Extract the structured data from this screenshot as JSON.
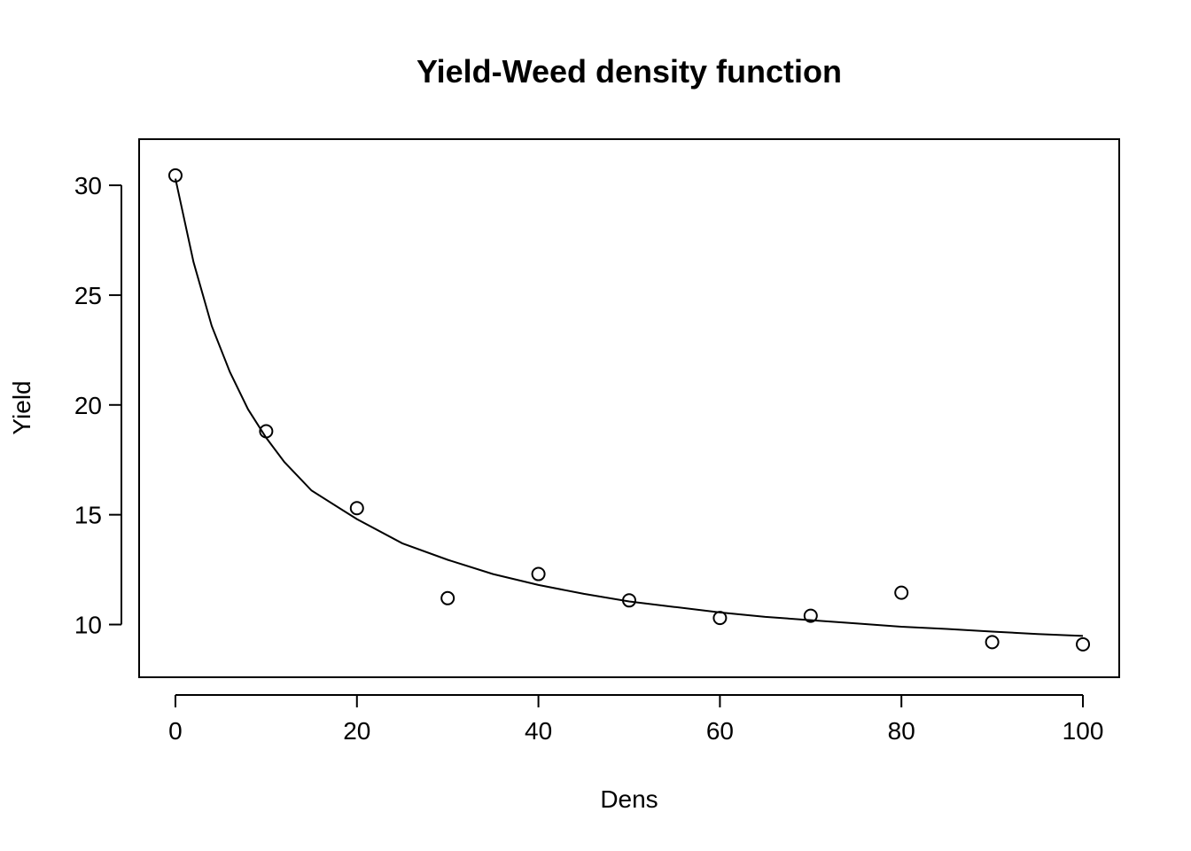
{
  "chart_data": {
    "type": "scatter",
    "title": "Yield-Weed density function",
    "xlabel": "Dens",
    "ylabel": "Yield",
    "xlim": [
      -4,
      104
    ],
    "ylim": [
      7.6,
      32.1
    ],
    "x_ticks": [
      0,
      20,
      40,
      60,
      80,
      100
    ],
    "y_ticks": [
      10,
      15,
      20,
      25,
      30
    ],
    "x_tick_labels": [
      "0",
      "20",
      "40",
      "60",
      "80",
      "100"
    ],
    "y_tick_labels": [
      "10",
      "15",
      "20",
      "25",
      "30"
    ],
    "grid": false,
    "legend": "none",
    "series": [
      {
        "kind": "points",
        "marker": "open-circle",
        "x": [
          0,
          10,
          20,
          30,
          40,
          50,
          60,
          70,
          80,
          90,
          100
        ],
        "y": [
          30.45,
          18.8,
          15.3,
          11.2,
          12.3,
          11.1,
          10.3,
          10.4,
          11.45,
          9.2,
          9.1
        ]
      },
      {
        "kind": "line",
        "x": [
          0,
          2,
          4,
          6,
          8,
          10,
          12,
          15,
          20,
          25,
          30,
          35,
          40,
          45,
          50,
          55,
          60,
          65,
          70,
          75,
          80,
          85,
          90,
          95,
          100
        ],
        "y": [
          30.3,
          26.5,
          23.6,
          21.5,
          19.8,
          18.5,
          17.4,
          16.1,
          14.8,
          13.7,
          12.95,
          12.3,
          11.8,
          11.4,
          11.05,
          10.8,
          10.55,
          10.35,
          10.2,
          10.05,
          9.9,
          9.8,
          9.68,
          9.57,
          9.48
        ]
      }
    ],
    "colors": {
      "axis": "#000000",
      "marker": "#000000",
      "line": "#000000"
    }
  }
}
